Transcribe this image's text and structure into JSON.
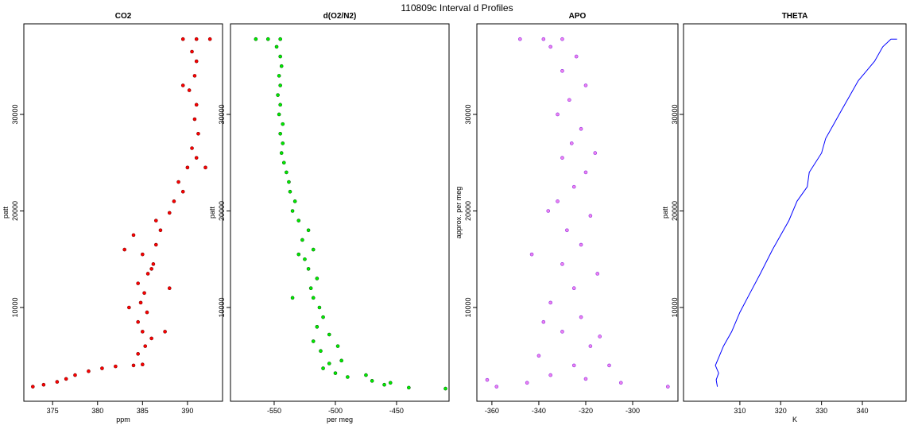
{
  "title": "110809c   Interval d Profiles",
  "chart_data": [
    {
      "type": "scatter",
      "title": "CO2",
      "xlabel": "ppm",
      "ylabel": "patt",
      "color": "#ff0000",
      "stroke": "#7a0000",
      "xlim": [
        371.8,
        393.9
      ],
      "ylim": [
        290,
        39380
      ],
      "xticks": [
        375,
        380,
        385,
        390
      ],
      "yticks": [
        10000,
        20000,
        30000
      ],
      "x": [
        372.8,
        374,
        375.5,
        376.5,
        377.5,
        379,
        380.5,
        382,
        384,
        385,
        384.5,
        385.3,
        386,
        385,
        384.5,
        385.5,
        384.8,
        385.2,
        384.5,
        385.6,
        386.2,
        385,
        386.5,
        384,
        387,
        386.5,
        388,
        388.5,
        389.5,
        389,
        390,
        391,
        390.5,
        391.2,
        390.8,
        391,
        390.2,
        390.8,
        391,
        390.5,
        389.5,
        392.5,
        391,
        383,
        388,
        383.5,
        387.5,
        389.5,
        392,
        386
      ],
      "y": [
        1800,
        2000,
        2300,
        2600,
        3000,
        3400,
        3700,
        3900,
        4000,
        4100,
        5200,
        6000,
        6800,
        7500,
        8500,
        9500,
        10500,
        11500,
        12500,
        13500,
        14500,
        15500,
        16500,
        17500,
        18000,
        19000,
        19800,
        21000,
        22000,
        23000,
        24500,
        25500,
        26500,
        28000,
        29500,
        31000,
        32500,
        34000,
        35500,
        36500,
        37800,
        37800,
        37800,
        16000,
        12000,
        10000,
        7500,
        33000,
        24500,
        14000
      ]
    },
    {
      "type": "scatter",
      "title": "d(O2/N2)",
      "xlabel": "per meg",
      "ylabel": "patt",
      "color": "#00ee00",
      "stroke": "#006600",
      "xlim": [
        -585.7,
        -407.1
      ],
      "ylim": [
        290,
        39380
      ],
      "xticks": [
        -550,
        -500,
        -450
      ],
      "yticks": [
        10000,
        20000,
        30000
      ],
      "x": [
        -410,
        -440,
        -460,
        -470,
        -490,
        -500,
        -510,
        -505,
        -495,
        -512,
        -518,
        -505,
        -515,
        -510,
        -513,
        -518,
        -520,
        -515,
        -522,
        -525,
        -518,
        -527,
        -522,
        -530,
        -535,
        -533,
        -537,
        -538,
        -540,
        -542,
        -544,
        -543,
        -545,
        -543,
        -546,
        -545,
        -547,
        -545,
        -546,
        -544,
        -545,
        -548,
        -565,
        -555,
        -545,
        -475,
        -455,
        -530,
        -498,
        -535
      ],
      "y": [
        1600,
        1700,
        2000,
        2400,
        2800,
        3200,
        3700,
        4200,
        4500,
        5500,
        6500,
        7200,
        8000,
        9000,
        10000,
        11000,
        12000,
        13000,
        14000,
        15000,
        16000,
        17000,
        18000,
        19000,
        20000,
        21000,
        22000,
        23000,
        24000,
        25000,
        26000,
        27000,
        28000,
        29000,
        30000,
        31000,
        32000,
        33000,
        34000,
        35000,
        36000,
        37000,
        37800,
        37800,
        37800,
        3000,
        2200,
        15500,
        6000,
        11000
      ]
    },
    {
      "type": "scatter",
      "title": "APO",
      "xlabel": null,
      "ylabel": "approx. per meg",
      "color": "#ee82ee",
      "stroke": "#8a2be2",
      "xlim": [
        -366.4,
        -280.7
      ],
      "ylim": [
        290,
        39380
      ],
      "xticks": [
        -360,
        -340,
        -320,
        -300
      ],
      "yticks": [
        10000,
        20000,
        30000
      ],
      "x": [
        -362,
        -358,
        -345,
        -335,
        -320,
        -305,
        -285,
        -325,
        -340,
        -318,
        -330,
        -322,
        -335,
        -325,
        -315,
        -330,
        -343,
        -322,
        -328,
        -318,
        -332,
        -325,
        -320,
        -330,
        -326,
        -322,
        -332,
        -327,
        -320,
        -330,
        -324,
        -335,
        -348,
        -338,
        -330,
        -310,
        -314,
        -338,
        -316,
        -336
      ],
      "y": [
        2500,
        1800,
        2200,
        3000,
        2600,
        2200,
        1800,
        4000,
        5000,
        6000,
        7500,
        9000,
        10500,
        12000,
        13500,
        14500,
        15500,
        16500,
        18000,
        19500,
        21000,
        22500,
        24000,
        25500,
        27000,
        28500,
        30000,
        31500,
        33000,
        34500,
        36000,
        37000,
        37800,
        37800,
        37800,
        4000,
        7000,
        8500,
        26000,
        20000
      ]
    },
    {
      "type": "line",
      "title": "THETA",
      "xlabel": "K",
      "ylabel": "patt",
      "color": "#0000ff",
      "xlim": [
        296.2,
        350.7
      ],
      "ylim": [
        290,
        39380
      ],
      "xticks": [
        310,
        320,
        330,
        340
      ],
      "yticks": [
        10000,
        20000,
        30000
      ],
      "x": [
        304.5,
        304.2,
        304.8,
        304,
        305,
        306,
        308,
        310,
        312.5,
        315,
        318,
        320,
        322,
        324,
        326.5,
        327,
        330,
        331,
        333,
        335,
        337,
        339,
        341,
        343,
        345,
        347,
        348.5
      ],
      "y": [
        1800,
        2500,
        3200,
        4000,
        5000,
        6000,
        7500,
        9500,
        11500,
        13500,
        16000,
        17500,
        19000,
        21000,
        22500,
        24000,
        26000,
        27500,
        29000,
        30500,
        32000,
        33500,
        34500,
        35500,
        37000,
        37800,
        37800
      ]
    }
  ]
}
